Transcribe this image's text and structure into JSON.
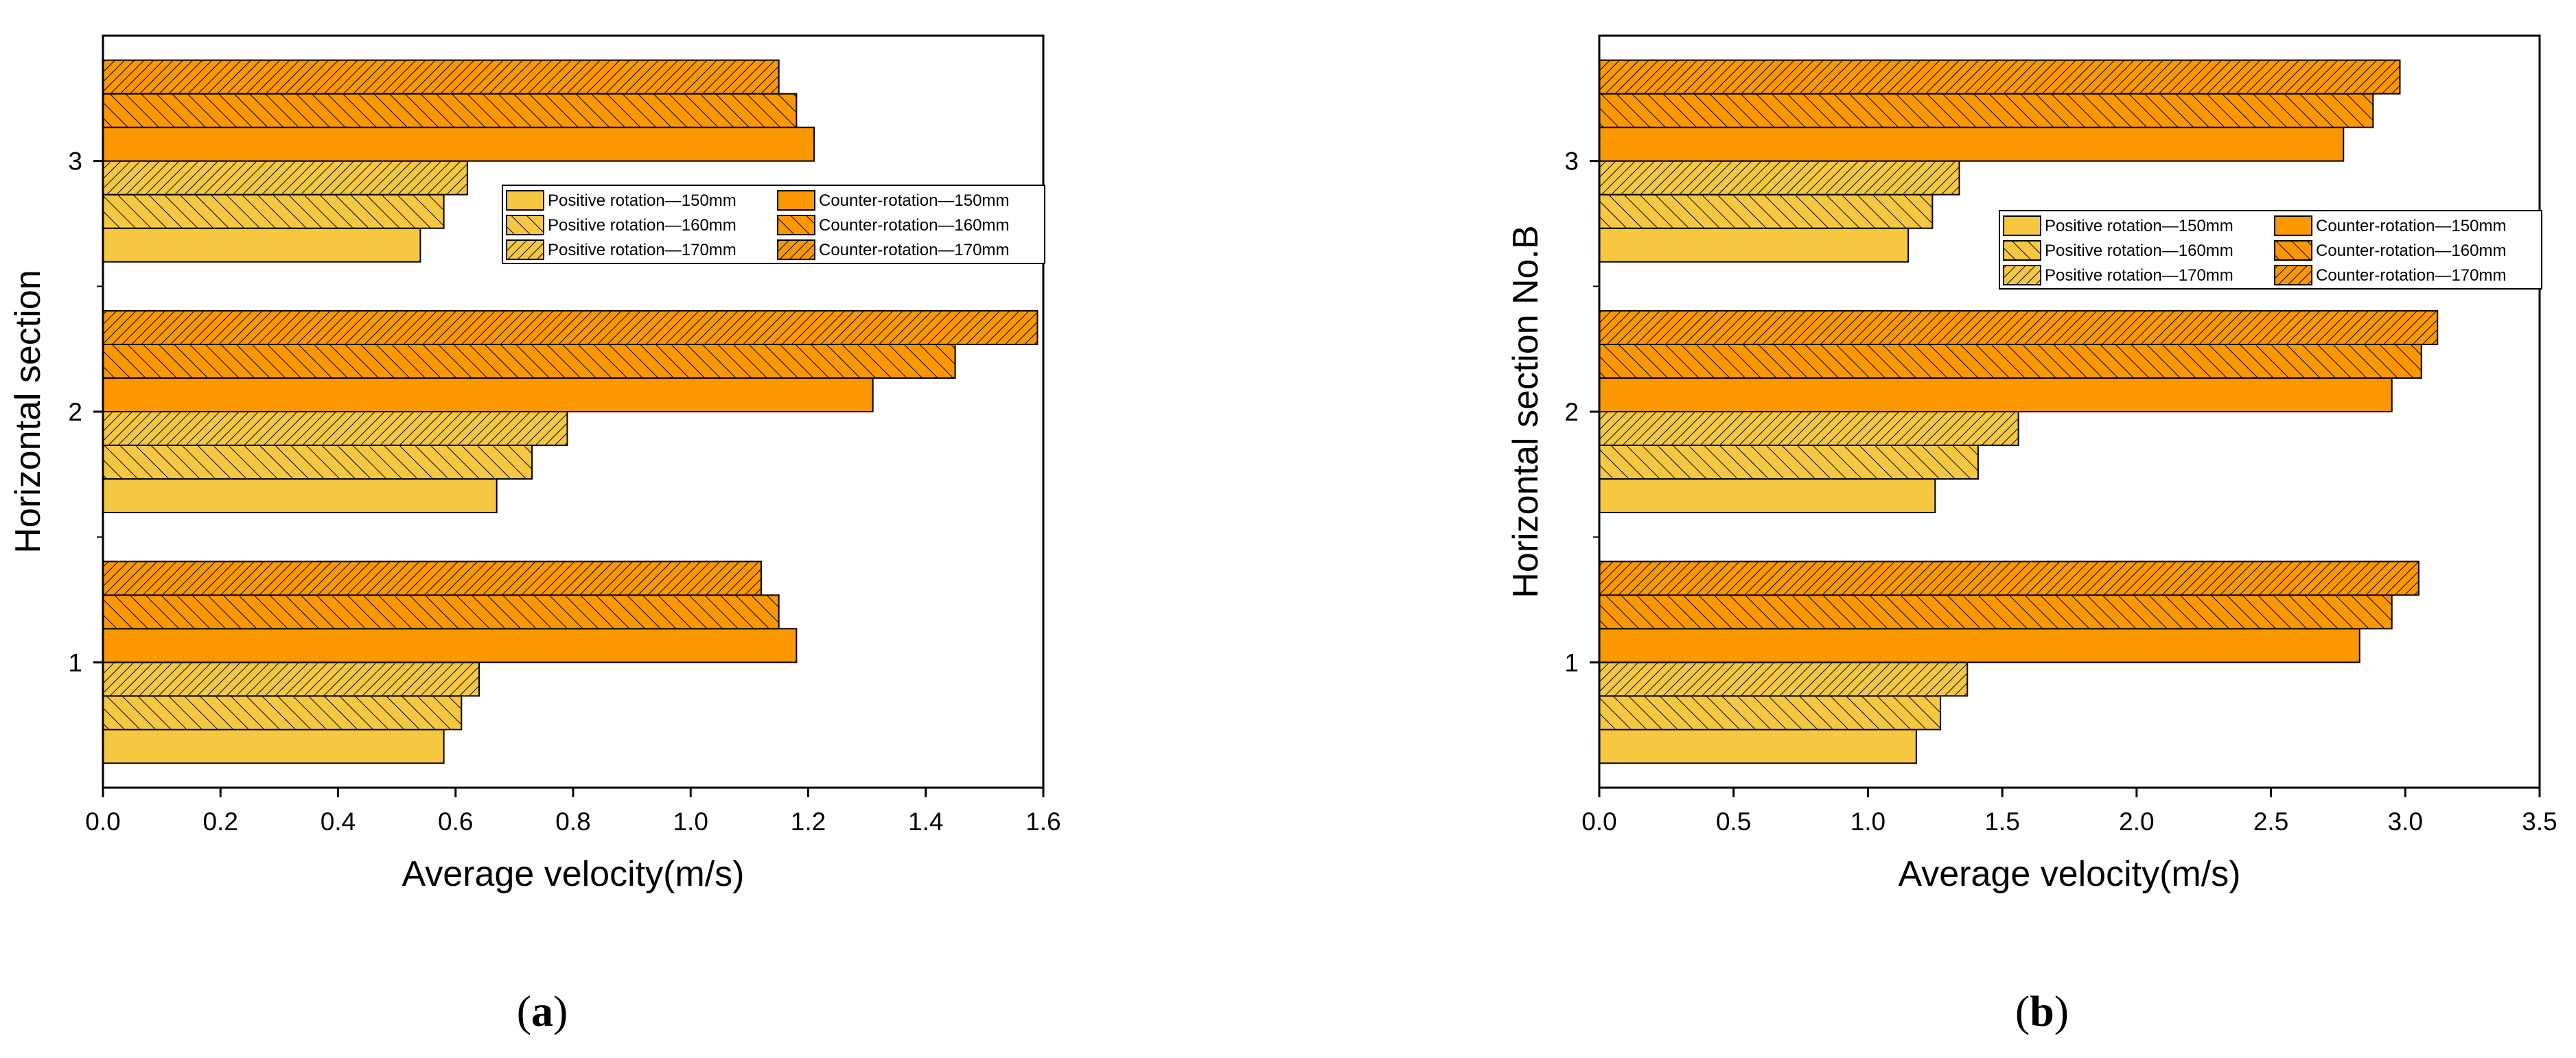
{
  "figure": {
    "series_names": [
      "Positive rotation—150mm",
      "Positive rotation—160mm",
      "Positive rotation—170mm",
      "Counter-rotation—150mm",
      "Counter-rotation—160mm",
      "Counter-rotation—170mm"
    ],
    "series_colors": [
      "#F6C842",
      "#F6C842",
      "#F6C842",
      "#FB9700",
      "#FB9700",
      "#FB9700"
    ],
    "series_hatch": [
      "none",
      "sparse",
      "dense",
      "none",
      "sparse",
      "dense"
    ]
  },
  "chart_data": [
    {
      "type": "bar",
      "orientation": "horizontal",
      "panel": "a",
      "caption_open": "(",
      "caption_letter": "a",
      "caption_close": ")",
      "categories": [
        "1",
        "2",
        "3"
      ],
      "series": [
        {
          "name": "Positive rotation—150mm",
          "values": [
            0.58,
            0.67,
            0.54
          ]
        },
        {
          "name": "Positive rotation—160mm",
          "values": [
            0.61,
            0.73,
            0.58
          ]
        },
        {
          "name": "Positive rotation—170mm",
          "values": [
            0.64,
            0.79,
            0.62
          ]
        },
        {
          "name": "Counter-rotation—150mm",
          "values": [
            1.18,
            1.31,
            1.21
          ]
        },
        {
          "name": "Counter-rotation—160mm",
          "values": [
            1.15,
            1.45,
            1.18
          ]
        },
        {
          "name": "Counter-rotation—170mm",
          "values": [
            1.12,
            1.59,
            1.15
          ]
        }
      ],
      "xlabel": "Average velocity(m/s)",
      "ylabel": "Horizontal section",
      "xlim": [
        0,
        1.6
      ],
      "xticks": [
        "0.0",
        "0.2",
        "0.4",
        "0.6",
        "0.8",
        "1.0",
        "1.2",
        "1.4",
        "1.6"
      ],
      "legend_position": "center-right"
    },
    {
      "type": "bar",
      "orientation": "horizontal",
      "panel": "b",
      "caption_open": "(",
      "caption_letter": "b",
      "caption_close": ")",
      "categories": [
        "1",
        "2",
        "3"
      ],
      "series": [
        {
          "name": "Positive rotation—150mm",
          "values": [
            1.18,
            1.25,
            1.15
          ]
        },
        {
          "name": "Positive rotation—160mm",
          "values": [
            1.27,
            1.41,
            1.24
          ]
        },
        {
          "name": "Positive rotation—170mm",
          "values": [
            1.37,
            1.56,
            1.34
          ]
        },
        {
          "name": "Counter-rotation—150mm",
          "values": [
            2.83,
            2.95,
            2.77
          ]
        },
        {
          "name": "Counter-rotation—160mm",
          "values": [
            2.95,
            3.06,
            2.88
          ]
        },
        {
          "name": "Counter-rotation—170mm",
          "values": [
            3.05,
            3.12,
            2.98
          ]
        }
      ],
      "xlabel": "Average velocity(m/s)",
      "ylabel": "Horizontal section No.B",
      "xlim": [
        0,
        3.5
      ],
      "xticks": [
        "0.0",
        "0.5",
        "1.0",
        "1.5",
        "2.0",
        "2.5",
        "3.0",
        "3.5"
      ],
      "legend_position": "center-right"
    }
  ]
}
